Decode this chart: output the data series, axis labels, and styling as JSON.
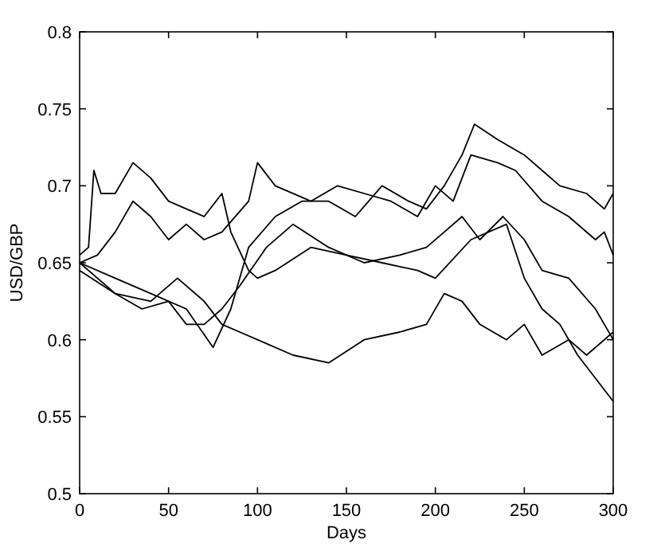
{
  "chart_data": {
    "type": "line",
    "xlabel": "Days",
    "ylabel": "USD/GBP",
    "xlim": [
      0,
      300
    ],
    "ylim": [
      0.5,
      0.8
    ],
    "xticks": [
      0,
      50,
      100,
      150,
      200,
      250,
      300
    ],
    "yticks": [
      {
        "value": 0.5,
        "label": "0.5"
      },
      {
        "value": 0.55,
        "label": "0.55"
      },
      {
        "value": 0.6,
        "label": "0.6"
      },
      {
        "value": 0.65,
        "label": "0.65"
      },
      {
        "value": 0.7,
        "label": "0.7"
      },
      {
        "value": 0.75,
        "label": "0.75"
      },
      {
        "value": 0.8,
        "label": "0.8"
      }
    ],
    "grid": false,
    "marker": "none",
    "line_style": "solid",
    "series": [
      {
        "color": "#000000",
        "x": [
          0,
          5,
          8,
          12,
          20,
          30,
          40,
          50,
          60,
          70,
          80,
          85,
          95,
          100,
          110,
          130,
          150,
          170,
          190,
          200,
          220,
          240,
          250,
          260,
          270,
          280,
          290,
          300
        ],
        "values": [
          0.655,
          0.66,
          0.71,
          0.695,
          0.695,
          0.715,
          0.705,
          0.69,
          0.685,
          0.68,
          0.695,
          0.67,
          0.645,
          0.64,
          0.645,
          0.66,
          0.655,
          0.65,
          0.645,
          0.64,
          0.665,
          0.675,
          0.64,
          0.62,
          0.61,
          0.59,
          0.575,
          0.56
        ]
      },
      {
        "color": "#000000",
        "x": [
          0,
          20,
          40,
          55,
          70,
          80,
          90,
          100,
          120,
          140,
          160,
          180,
          195,
          205,
          215,
          225,
          240,
          250,
          260,
          275,
          285,
          300
        ],
        "values": [
          0.65,
          0.63,
          0.625,
          0.64,
          0.625,
          0.61,
          0.605,
          0.6,
          0.59,
          0.585,
          0.6,
          0.605,
          0.61,
          0.63,
          0.625,
          0.61,
          0.6,
          0.61,
          0.59,
          0.6,
          0.59,
          0.605
        ]
      },
      {
        "color": "#000000",
        "x": [
          0,
          20,
          40,
          60,
          75,
          85,
          95,
          110,
          125,
          140,
          155,
          170,
          185,
          195,
          205,
          215,
          222,
          235,
          250,
          260,
          270,
          285,
          295,
          300
        ],
        "values": [
          0.65,
          0.64,
          0.63,
          0.62,
          0.595,
          0.62,
          0.66,
          0.68,
          0.69,
          0.69,
          0.68,
          0.7,
          0.69,
          0.685,
          0.7,
          0.72,
          0.74,
          0.73,
          0.72,
          0.71,
          0.7,
          0.695,
          0.685,
          0.695
        ]
      },
      {
        "color": "#000000",
        "x": [
          0,
          10,
          20,
          30,
          40,
          50,
          60,
          70,
          80,
          95,
          100,
          110,
          130,
          145,
          160,
          175,
          190,
          200,
          210,
          220,
          235,
          245,
          260,
          275,
          290,
          295,
          300
        ],
        "values": [
          0.65,
          0.655,
          0.67,
          0.69,
          0.68,
          0.665,
          0.675,
          0.665,
          0.67,
          0.69,
          0.715,
          0.7,
          0.69,
          0.7,
          0.695,
          0.69,
          0.68,
          0.7,
          0.69,
          0.72,
          0.715,
          0.71,
          0.69,
          0.68,
          0.665,
          0.67,
          0.655
        ]
      },
      {
        "color": "#000000",
        "x": [
          0,
          20,
          35,
          50,
          60,
          70,
          80,
          90,
          105,
          120,
          140,
          160,
          180,
          195,
          205,
          215,
          225,
          238,
          250,
          260,
          275,
          290,
          300
        ],
        "values": [
          0.645,
          0.63,
          0.62,
          0.625,
          0.61,
          0.61,
          0.62,
          0.635,
          0.66,
          0.675,
          0.66,
          0.65,
          0.655,
          0.66,
          0.67,
          0.68,
          0.665,
          0.68,
          0.665,
          0.645,
          0.64,
          0.62,
          0.6
        ]
      }
    ]
  }
}
